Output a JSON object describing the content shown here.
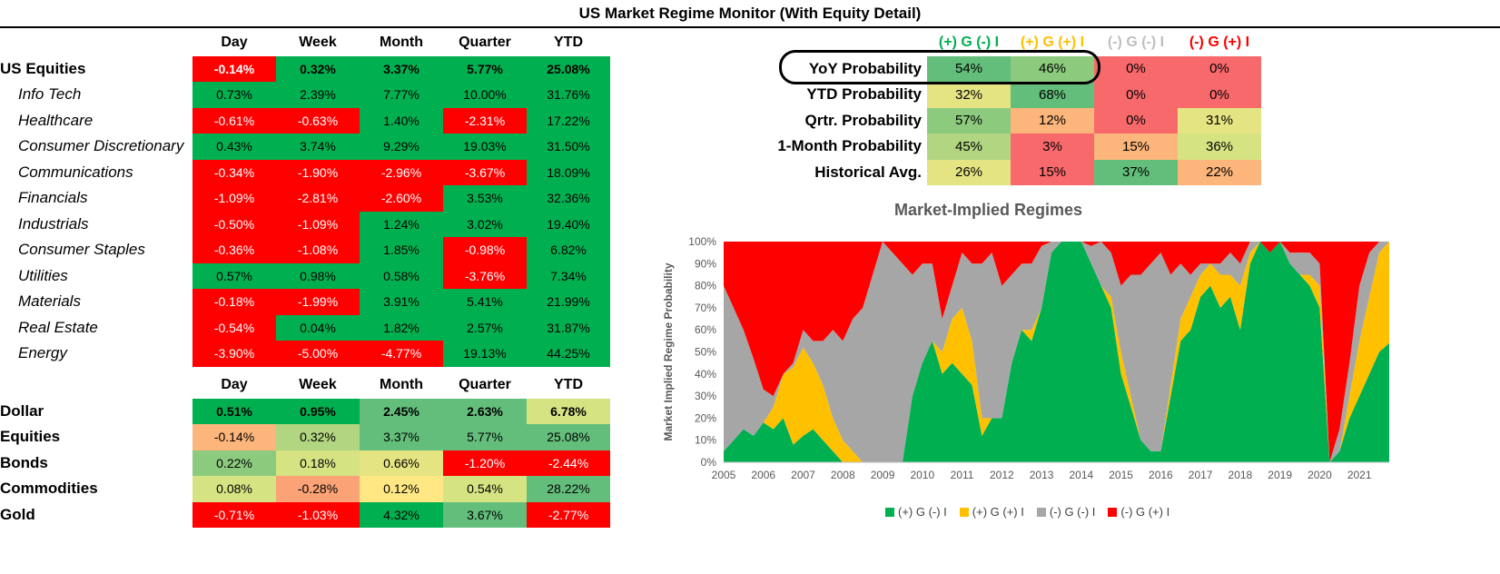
{
  "title": "US Market Regime Monitor (With Equity Detail)",
  "equity_table": {
    "headers": [
      "Day",
      "Week",
      "Month",
      "Quarter",
      "YTD"
    ],
    "rows": [
      {
        "label": "US Equities",
        "bold": true,
        "values": [
          "-0.14%",
          "0.32%",
          "3.37%",
          "5.77%",
          "25.08%"
        ],
        "cls": [
          "r1",
          "g1",
          "g1",
          "g1",
          "g1"
        ]
      },
      {
        "label": "Info Tech",
        "values": [
          "0.73%",
          "2.39%",
          "7.77%",
          "10.00%",
          "31.76%"
        ],
        "cls": [
          "g1",
          "g1",
          "g1",
          "g1",
          "g1"
        ]
      },
      {
        "label": "Healthcare",
        "values": [
          "-0.61%",
          "-0.63%",
          "1.40%",
          "-2.31%",
          "17.22%"
        ],
        "cls": [
          "r1",
          "r1",
          "g1",
          "r1",
          "g1"
        ]
      },
      {
        "label": "Consumer Discretionary",
        "values": [
          "0.43%",
          "3.74%",
          "9.29%",
          "19.03%",
          "31.50%"
        ],
        "cls": [
          "g1",
          "g1",
          "g1",
          "g1",
          "g1"
        ]
      },
      {
        "label": "Communications",
        "values": [
          "-0.34%",
          "-1.90%",
          "-2.96%",
          "-3.67%",
          "18.09%"
        ],
        "cls": [
          "r1",
          "r1",
          "r1",
          "r1",
          "g1"
        ]
      },
      {
        "label": "Financials",
        "values": [
          "-1.09%",
          "-2.81%",
          "-2.60%",
          "3.53%",
          "32.36%"
        ],
        "cls": [
          "r1",
          "r1",
          "r1",
          "g1",
          "g1"
        ]
      },
      {
        "label": "Industrials",
        "values": [
          "-0.50%",
          "-1.09%",
          "1.24%",
          "3.02%",
          "19.40%"
        ],
        "cls": [
          "r1",
          "r1",
          "g1",
          "g1",
          "g1"
        ]
      },
      {
        "label": "Consumer Staples",
        "values": [
          "-0.36%",
          "-1.08%",
          "1.85%",
          "-0.98%",
          "6.82%"
        ],
        "cls": [
          "r1",
          "r1",
          "g1",
          "r1",
          "g1"
        ]
      },
      {
        "label": "Utilities",
        "values": [
          "0.57%",
          "0.98%",
          "0.58%",
          "-3.76%",
          "7.34%"
        ],
        "cls": [
          "g1",
          "g1",
          "g1",
          "r1",
          "g1"
        ]
      },
      {
        "label": "Materials",
        "values": [
          "-0.18%",
          "-1.99%",
          "3.91%",
          "5.41%",
          "21.99%"
        ],
        "cls": [
          "r1",
          "r1",
          "g1",
          "g1",
          "g1"
        ]
      },
      {
        "label": "Real Estate",
        "values": [
          "-0.54%",
          "0.04%",
          "1.82%",
          "2.57%",
          "31.87%"
        ],
        "cls": [
          "r1",
          "g1",
          "g1",
          "g1",
          "g1"
        ]
      },
      {
        "label": "Energy",
        "values": [
          "-3.90%",
          "-5.00%",
          "-4.77%",
          "19.13%",
          "44.25%"
        ],
        "cls": [
          "r1",
          "r1",
          "r1",
          "g1",
          "g1"
        ]
      }
    ]
  },
  "asset_table": {
    "headers": [
      "Day",
      "Week",
      "Month",
      "Quarter",
      "YTD"
    ],
    "rows": [
      {
        "label": "Dollar",
        "bold": true,
        "values": [
          "0.51%",
          "0.95%",
          "2.45%",
          "2.63%",
          "6.78%"
        ],
        "cls": [
          "g1",
          "g1",
          "g2",
          "g2",
          "y1"
        ]
      },
      {
        "label": "Equities",
        "bold": true,
        "values": [
          "-0.14%",
          "0.32%",
          "3.37%",
          "5.77%",
          "25.08%"
        ],
        "cls": [
          "o1",
          "g4",
          "g2",
          "g2",
          "g2"
        ]
      },
      {
        "label": "Bonds",
        "bold": true,
        "values": [
          "0.22%",
          "0.18%",
          "0.66%",
          "-1.20%",
          "-2.44%"
        ],
        "cls": [
          "g3",
          "y1",
          "y2",
          "r1",
          "r1"
        ]
      },
      {
        "label": "Commodities",
        "bold": true,
        "values": [
          "0.08%",
          "-0.28%",
          "0.12%",
          "0.54%",
          "28.22%"
        ],
        "cls": [
          "y1",
          "o2",
          "y3",
          "y1",
          "g2"
        ]
      },
      {
        "label": "Gold",
        "bold": true,
        "values": [
          "-0.71%",
          "-1.03%",
          "4.32%",
          "3.67%",
          "-2.77%"
        ],
        "cls": [
          "r1",
          "r1",
          "g1",
          "g2",
          "r1"
        ]
      }
    ]
  },
  "prob_table": {
    "headers": [
      "(+) G (-) I",
      "(+) G (+) I",
      "(-) G (-) I",
      "(-) G (+) I"
    ],
    "header_colors": [
      "#00b050",
      "#ffc000",
      "#bfbfbf",
      "#ff0000"
    ],
    "rows": [
      {
        "label": "YoY Probability",
        "values": [
          "54%",
          "46%",
          "0%",
          "0%"
        ],
        "cls": [
          "g2",
          "g3",
          "rp",
          "rp"
        ]
      },
      {
        "label": "YTD Probability",
        "values": [
          "32%",
          "68%",
          "0%",
          "0%"
        ],
        "cls": [
          "y2",
          "g2",
          "rp",
          "rp"
        ]
      },
      {
        "label": "Qrtr. Probability",
        "values": [
          "57%",
          "12%",
          "0%",
          "31%"
        ],
        "cls": [
          "g3",
          "o1",
          "rp",
          "y2"
        ]
      },
      {
        "label": "1-Month Probability",
        "values": [
          "45%",
          "3%",
          "15%",
          "36%"
        ],
        "cls": [
          "g4",
          "rp",
          "o1",
          "y1"
        ]
      },
      {
        "label": "Historical Avg.",
        "values": [
          "26%",
          "15%",
          "37%",
          "22%"
        ],
        "cls": [
          "y2",
          "rp",
          "g2",
          "o1"
        ]
      }
    ]
  },
  "chart_data": {
    "type": "area",
    "title": "Market-Implied Regimes",
    "xlabel": "",
    "ylabel": "Market Implied Regime Probability",
    "ylim": [
      0,
      100
    ],
    "yticks": [
      "0%",
      "10%",
      "20%",
      "30%",
      "40%",
      "50%",
      "60%",
      "70%",
      "80%",
      "90%",
      "100%"
    ],
    "xticks": [
      "2005",
      "2006",
      "2007",
      "2008",
      "2009",
      "2010",
      "2011",
      "2012",
      "2013",
      "2014",
      "2015",
      "2016",
      "2017",
      "2018",
      "2019",
      "2020",
      "2021"
    ],
    "xlim": [
      2005.0,
      2021.75
    ],
    "stacked": true,
    "x": [
      2005.0,
      2005.25,
      2005.5,
      2005.75,
      2006.0,
      2006.25,
      2006.5,
      2006.75,
      2007.0,
      2007.25,
      2007.5,
      2007.75,
      2008.0,
      2008.25,
      2008.5,
      2008.75,
      2009.0,
      2009.25,
      2009.5,
      2009.75,
      2010.0,
      2010.25,
      2010.5,
      2010.75,
      2011.0,
      2011.25,
      2011.5,
      2011.75,
      2012.0,
      2012.25,
      2012.5,
      2012.75,
      2013.0,
      2013.25,
      2013.5,
      2013.75,
      2014.0,
      2014.25,
      2014.5,
      2014.75,
      2015.0,
      2015.25,
      2015.5,
      2015.75,
      2016.0,
      2016.25,
      2016.5,
      2016.75,
      2017.0,
      2017.25,
      2017.5,
      2017.75,
      2018.0,
      2018.25,
      2018.5,
      2018.75,
      2019.0,
      2019.25,
      2019.5,
      2019.75,
      2020.0,
      2020.25,
      2020.5,
      2020.75,
      2021.0,
      2021.25,
      2021.5,
      2021.75
    ],
    "series": [
      {
        "name": "(+) G (-) I",
        "color": "#00b050",
        "values": [
          5,
          10,
          15,
          12,
          18,
          15,
          20,
          8,
          12,
          15,
          10,
          5,
          0,
          0,
          0,
          0,
          0,
          0,
          0,
          30,
          45,
          55,
          40,
          45,
          40,
          35,
          12,
          20,
          20,
          45,
          60,
          55,
          70,
          95,
          100,
          100,
          100,
          90,
          80,
          70,
          40,
          25,
          10,
          5,
          5,
          30,
          55,
          60,
          75,
          80,
          70,
          75,
          60,
          90,
          100,
          95,
          100,
          90,
          85,
          80,
          70,
          0,
          5,
          20,
          30,
          40,
          50,
          54
        ]
      },
      {
        "name": "(+) G (+) I",
        "color": "#ffc000",
        "values": [
          0,
          0,
          0,
          0,
          0,
          10,
          20,
          35,
          40,
          30,
          25,
          15,
          10,
          5,
          0,
          0,
          0,
          0,
          0,
          0,
          0,
          0,
          10,
          20,
          30,
          20,
          8,
          0,
          0,
          0,
          0,
          5,
          0,
          0,
          0,
          0,
          0,
          0,
          0,
          5,
          10,
          5,
          0,
          0,
          0,
          5,
          10,
          15,
          10,
          10,
          15,
          10,
          20,
          5,
          0,
          0,
          0,
          0,
          0,
          5,
          10,
          0,
          0,
          10,
          25,
          35,
          45,
          46
        ]
      },
      {
        "name": "(-) G (-) I",
        "color": "#a6a6a6",
        "values": [
          75,
          60,
          45,
          35,
          15,
          5,
          0,
          2,
          8,
          10,
          20,
          40,
          45,
          60,
          70,
          85,
          100,
          95,
          90,
          55,
          45,
          35,
          15,
          15,
          25,
          35,
          70,
          75,
          60,
          40,
          30,
          30,
          28,
          5,
          0,
          0,
          0,
          8,
          20,
          20,
          30,
          55,
          75,
          85,
          90,
          50,
          25,
          10,
          5,
          0,
          5,
          10,
          10,
          5,
          0,
          0,
          0,
          5,
          10,
          10,
          10,
          0,
          10,
          15,
          25,
          20,
          5,
          0
        ]
      },
      {
        "name": "(-) G (+) I",
        "color": "#ff0000",
        "values": [
          20,
          30,
          40,
          53,
          67,
          70,
          60,
          55,
          40,
          45,
          45,
          40,
          45,
          35,
          30,
          15,
          0,
          5,
          10,
          15,
          10,
          10,
          35,
          20,
          5,
          10,
          10,
          5,
          20,
          15,
          10,
          10,
          2,
          0,
          0,
          0,
          0,
          2,
          0,
          5,
          20,
          15,
          15,
          10,
          5,
          15,
          10,
          15,
          10,
          10,
          10,
          5,
          10,
          0,
          0,
          5,
          0,
          5,
          5,
          5,
          10,
          100,
          85,
          55,
          20,
          5,
          0,
          0
        ]
      }
    ],
    "legend": [
      {
        "label": "(+) G (-) I",
        "color": "#00b050"
      },
      {
        "label": "(+) G (+) I",
        "color": "#ffc000"
      },
      {
        "label": "(-) G (-) I",
        "color": "#a6a6a6"
      },
      {
        "label": "(-) G (+) I",
        "color": "#ff0000"
      }
    ],
    "legend_position": "bottom"
  }
}
